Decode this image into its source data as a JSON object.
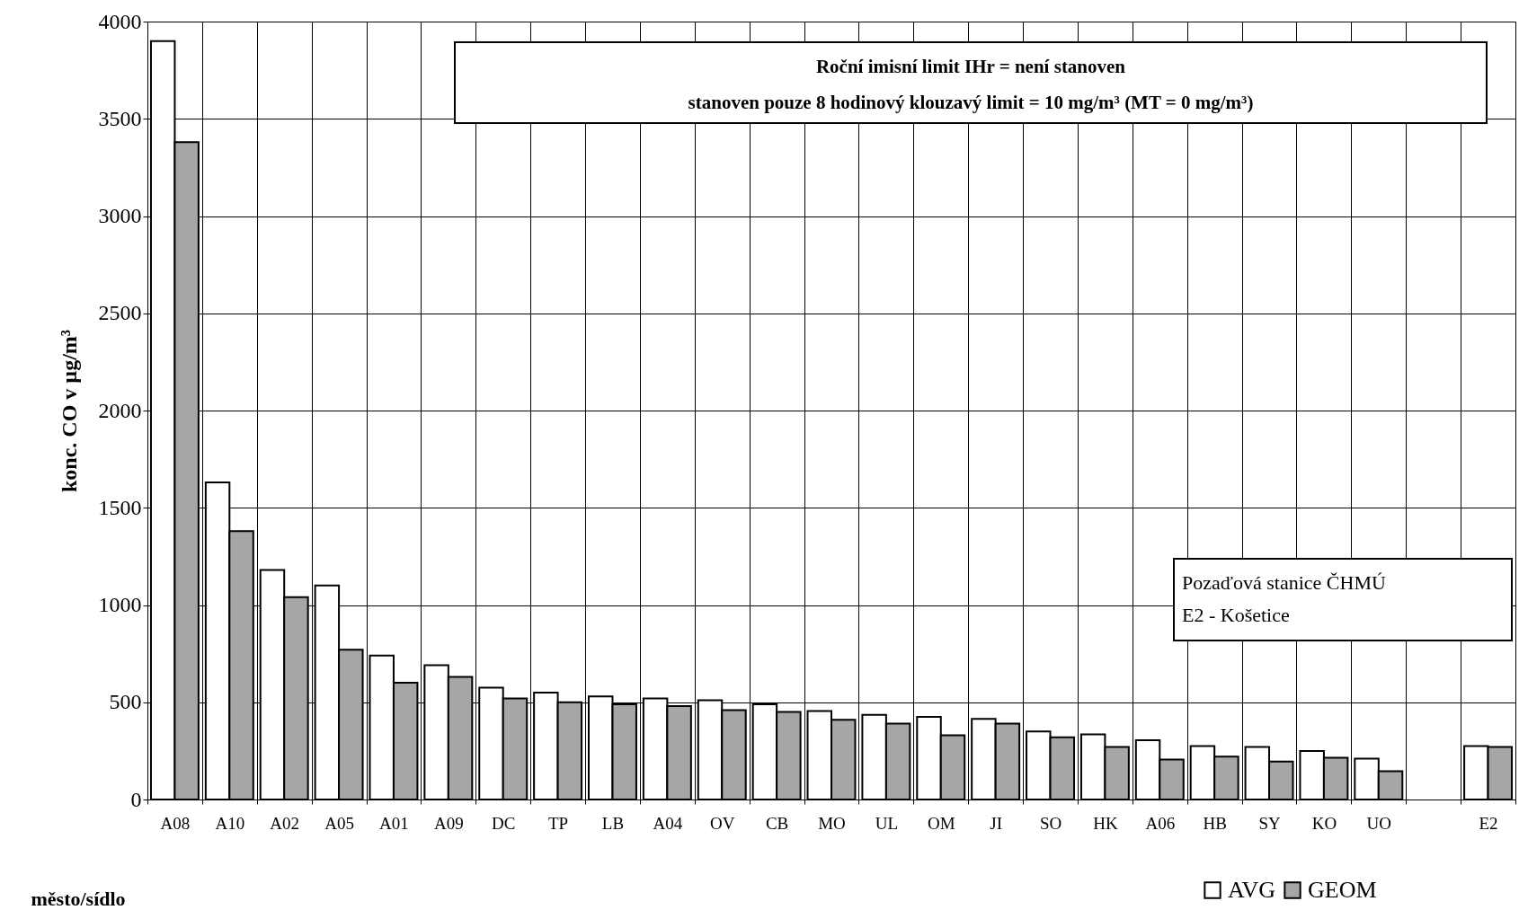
{
  "chart_data": {
    "type": "bar",
    "categories": [
      "A08",
      "A10",
      "A02",
      "A05",
      "A01",
      "A09",
      "DC",
      "TP",
      "LB",
      "A04",
      "OV",
      "CB",
      "MO",
      "UL",
      "OM",
      "JI",
      "SO",
      "HK",
      "A06",
      "HB",
      "SY",
      "KO",
      "UO",
      null,
      "E2"
    ],
    "series": [
      {
        "name": "AVG",
        "color": "#ffffff",
        "values": [
          3900,
          1630,
          1180,
          1100,
          740,
          690,
          575,
          550,
          530,
          520,
          510,
          490,
          455,
          435,
          425,
          415,
          350,
          335,
          305,
          275,
          270,
          250,
          210,
          null,
          275
        ]
      },
      {
        "name": "GEOM",
        "color": "#a6a6a6",
        "values": [
          3380,
          1380,
          1040,
          770,
          600,
          630,
          520,
          500,
          490,
          480,
          460,
          450,
          410,
          390,
          330,
          390,
          320,
          270,
          205,
          220,
          195,
          215,
          145,
          null,
          270
        ]
      }
    ],
    "xlabel": "město/sídlo",
    "ylabel": "konc. CO v µg/m³",
    "ylim": [
      0,
      4000
    ],
    "yticks": [
      0,
      500,
      1000,
      1500,
      2000,
      2500,
      3000,
      3500,
      4000
    ],
    "grid": true,
    "legend": "bottom right",
    "annotations": [
      "Roční imisní limit  IHr = není stanoven",
      "stanoven pouze 8 hodinový klouzavý limit = 10 mg/m³ (MT = 0 mg/m³)",
      "Pozaďová stanice ČHMÚ",
      "E2 - Košetice"
    ]
  }
}
